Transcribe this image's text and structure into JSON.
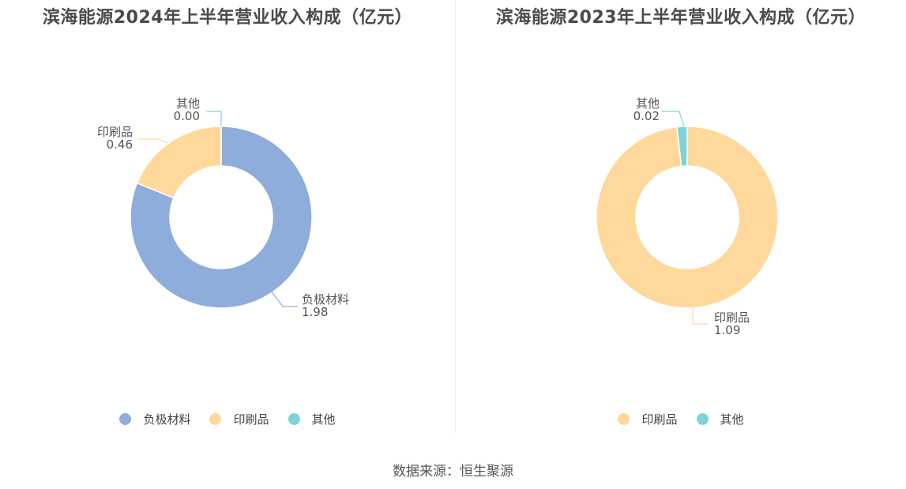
{
  "colors": {
    "负极材料": "#8fadda",
    "印刷品": "#fed99b",
    "其他": "#7fd3d6"
  },
  "source_text": "数据来源：恒生聚源",
  "chart_data": [
    {
      "type": "pie",
      "title": "滨海能源2024年上半年营业收入构成（亿元）",
      "slices": [
        {
          "label": "负极材料",
          "value": 1.98,
          "value_text": "1.98"
        },
        {
          "label": "印刷品",
          "value": 0.46,
          "value_text": "0.46"
        },
        {
          "label": "其他",
          "value": 0.0,
          "value_text": "0.00"
        }
      ],
      "legend": [
        "负极材料",
        "印刷品",
        "其他"
      ],
      "legend_position": "bottom"
    },
    {
      "type": "pie",
      "title": "滨海能源2023年上半年营业收入构成（亿元）",
      "slices": [
        {
          "label": "印刷品",
          "value": 1.09,
          "value_text": "1.09"
        },
        {
          "label": "其他",
          "value": 0.02,
          "value_text": "0.02"
        }
      ],
      "legend": [
        "印刷品",
        "其他"
      ],
      "legend_position": "bottom"
    }
  ]
}
